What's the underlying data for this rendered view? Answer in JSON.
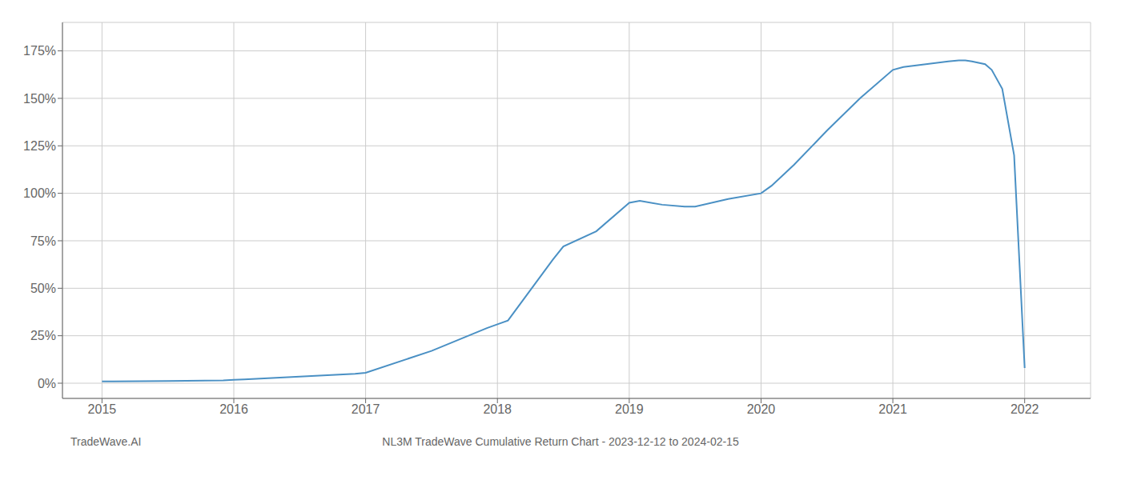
{
  "chart_data": {
    "type": "line",
    "title": "NL3M TradeWave Cumulative Return Chart - 2023-12-12 to 2024-02-15",
    "annotations": [
      "TradeWave.AI"
    ],
    "x": [
      2015.0,
      2015.08,
      2015.5,
      2015.92,
      2016.0,
      2016.08,
      2016.5,
      2016.92,
      2017.0,
      2017.5,
      2017.92,
      2018.0,
      2018.08,
      2018.42,
      2018.5,
      2018.75,
      2019.0,
      2019.08,
      2019.25,
      2019.42,
      2019.5,
      2019.75,
      2020.0,
      2020.08,
      2020.25,
      2020.5,
      2020.75,
      2021.0,
      2021.08,
      2021.25,
      2021.42,
      2021.5,
      2021.55,
      2021.6,
      2021.7,
      2021.75,
      2021.83,
      2021.92,
      2022.0
    ],
    "values": [
      1.0,
      1.0,
      1.2,
      1.5,
      1.8,
      2.0,
      3.5,
      5.0,
      5.5,
      17.0,
      29.0,
      31.0,
      33.0,
      65.0,
      72.0,
      80.0,
      95.0,
      96.0,
      94.0,
      93.0,
      93.0,
      97.0,
      100.0,
      104.0,
      115.0,
      133.0,
      150.0,
      165.0,
      166.5,
      168.0,
      169.5,
      170.0,
      170.0,
      169.5,
      168.0,
      165.0,
      155.0,
      120.0,
      8.0
    ],
    "color": "#4a90c4",
    "xlim": [
      2014.7,
      2022.5
    ],
    "xticks": [
      2015,
      2016,
      2017,
      2018,
      2019,
      2020,
      2021,
      2022
    ],
    "ylim": [
      -8,
      190
    ],
    "yticks": [
      {
        "value": 0,
        "label": "0%"
      },
      {
        "value": 25,
        "label": "25%"
      },
      {
        "value": 50,
        "label": "50%"
      },
      {
        "value": 75,
        "label": "75%"
      },
      {
        "value": 100,
        "label": "100%"
      },
      {
        "value": 125,
        "label": "125%"
      },
      {
        "value": 150,
        "label": "150%"
      },
      {
        "value": 175,
        "label": "175%"
      }
    ],
    "grid": true
  }
}
